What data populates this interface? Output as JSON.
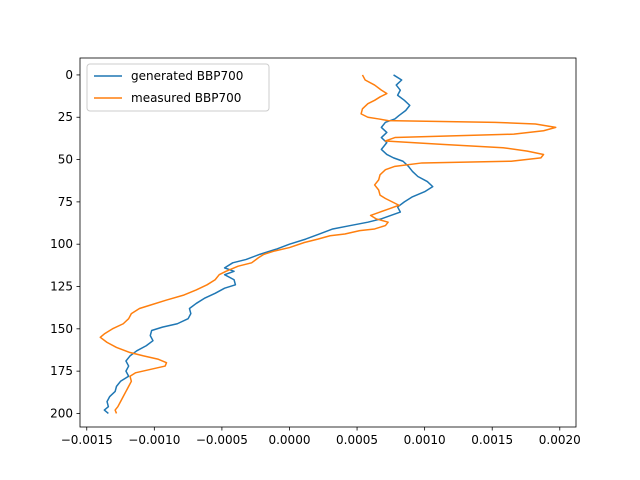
{
  "chart_data": {
    "type": "line",
    "title": "",
    "xlabel": "",
    "ylabel": "",
    "xlim": [
      -0.00155,
      0.00212
    ],
    "ylim": [
      208,
      -10
    ],
    "y_inverted": true,
    "grid": false,
    "legend_position": "upper-left",
    "x_ticks": [
      -0.0015,
      -0.001,
      -0.0005,
      0.0,
      0.0005,
      0.001,
      0.0015,
      0.002
    ],
    "x_tick_labels": [
      "−0.0015",
      "−0.0010",
      "−0.0005",
      "0.0000",
      "0.0005",
      "0.0010",
      "0.0015",
      "0.0020"
    ],
    "y_ticks": [
      0,
      25,
      50,
      75,
      100,
      125,
      150,
      175,
      200
    ],
    "y_tick_labels": [
      "0",
      "25",
      "50",
      "75",
      "100",
      "125",
      "150",
      "175",
      "200"
    ],
    "series": [
      {
        "name": "generated BBP700",
        "color": "#1f77b4",
        "points": [
          [
            0.00077,
            0
          ],
          [
            0.00083,
            3
          ],
          [
            0.00079,
            6
          ],
          [
            0.00082,
            9
          ],
          [
            0.0008,
            12
          ],
          [
            0.00085,
            15
          ],
          [
            0.00089,
            18
          ],
          [
            0.00086,
            21
          ],
          [
            0.00081,
            24
          ],
          [
            0.00078,
            26
          ],
          [
            0.00071,
            28
          ],
          [
            0.00068,
            31
          ],
          [
            0.00072,
            34
          ],
          [
            0.00068,
            37
          ],
          [
            0.00072,
            40
          ],
          [
            0.00068,
            44
          ],
          [
            0.00072,
            47
          ],
          [
            0.00077,
            49
          ],
          [
            0.00084,
            51
          ],
          [
            0.00088,
            54
          ],
          [
            0.00091,
            57
          ],
          [
            0.00095,
            60
          ],
          [
            0.00102,
            63
          ],
          [
            0.00106,
            66
          ],
          [
            0.001,
            69
          ],
          [
            0.00091,
            72
          ],
          [
            0.00085,
            75
          ],
          [
            0.0008,
            78
          ],
          [
            0.00082,
            81
          ],
          [
            0.00075,
            83
          ],
          [
            0.00068,
            85
          ],
          [
            0.00058,
            87
          ],
          [
            0.00045,
            89
          ],
          [
            0.00032,
            91
          ],
          [
            0.00022,
            94
          ],
          [
            0.00012,
            97
          ],
          [
            0.0,
            100
          ],
          [
            -0.0001,
            103
          ],
          [
            -0.00022,
            106
          ],
          [
            -0.00032,
            109
          ],
          [
            -0.00042,
            111
          ],
          [
            -0.00048,
            114
          ],
          [
            -0.00041,
            116
          ],
          [
            -0.00048,
            118
          ],
          [
            -0.00041,
            121
          ],
          [
            -0.0004,
            124
          ],
          [
            -0.00048,
            126
          ],
          [
            -0.00055,
            129
          ],
          [
            -0.00063,
            132
          ],
          [
            -0.00069,
            135
          ],
          [
            -0.00074,
            138
          ],
          [
            -0.00073,
            141
          ],
          [
            -0.00075,
            144
          ],
          [
            -0.00083,
            147
          ],
          [
            -0.00094,
            149
          ],
          [
            -0.00102,
            151
          ],
          [
            -0.00103,
            154
          ],
          [
            -0.00101,
            157
          ],
          [
            -0.00106,
            160
          ],
          [
            -0.00113,
            163
          ],
          [
            -0.00118,
            166
          ],
          [
            -0.00121,
            169
          ],
          [
            -0.00119,
            172
          ],
          [
            -0.00121,
            175
          ],
          [
            -0.00119,
            178
          ],
          [
            -0.00125,
            181
          ],
          [
            -0.00128,
            184
          ],
          [
            -0.00129,
            187
          ],
          [
            -0.00133,
            190
          ],
          [
            -0.00135,
            193
          ],
          [
            -0.00134,
            196
          ],
          [
            -0.00137,
            198
          ],
          [
            -0.00134,
            200
          ]
        ]
      },
      {
        "name": "measured BBP700",
        "color": "#ff7f0e",
        "points": [
          [
            0.00054,
            0
          ],
          [
            0.00056,
            3
          ],
          [
            0.00063,
            6
          ],
          [
            0.00068,
            9
          ],
          [
            0.00072,
            11
          ],
          [
            0.00067,
            13
          ],
          [
            0.00063,
            15
          ],
          [
            0.00058,
            17
          ],
          [
            0.00054,
            20
          ],
          [
            0.00053,
            23
          ],
          [
            0.00058,
            25
          ],
          [
            0.00066,
            26
          ],
          [
            0.00073,
            27
          ],
          [
            0.00152,
            28
          ],
          [
            0.00182,
            29
          ],
          [
            0.00197,
            31
          ],
          [
            0.00188,
            33
          ],
          [
            0.00166,
            35
          ],
          [
            0.00078,
            37
          ],
          [
            0.00071,
            39
          ],
          [
            0.00113,
            41
          ],
          [
            0.00158,
            43
          ],
          [
            0.00176,
            45
          ],
          [
            0.00188,
            47
          ],
          [
            0.00186,
            49
          ],
          [
            0.00164,
            51
          ],
          [
            0.00098,
            52
          ],
          [
            0.00078,
            54
          ],
          [
            0.00071,
            56
          ],
          [
            0.00067,
            59
          ],
          [
            0.00066,
            62
          ],
          [
            0.00063,
            65
          ],
          [
            0.00066,
            68
          ],
          [
            0.00067,
            71
          ],
          [
            0.00071,
            73
          ],
          [
            0.00076,
            75
          ],
          [
            0.00081,
            77
          ],
          [
            0.00074,
            79
          ],
          [
            0.00067,
            81
          ],
          [
            0.0006,
            83
          ],
          [
            0.00064,
            85
          ],
          [
            0.00073,
            87
          ],
          [
            0.00071,
            89
          ],
          [
            0.00063,
            91
          ],
          [
            0.00052,
            92
          ],
          [
            0.00041,
            94
          ],
          [
            0.0003,
            95
          ],
          [
            0.00021,
            97
          ],
          [
            0.00011,
            99
          ],
          [
            0.0,
            102
          ],
          [
            -0.00011,
            104
          ],
          [
            -0.00019,
            106
          ],
          [
            -0.00023,
            108
          ],
          [
            -0.00028,
            111
          ],
          [
            -0.00038,
            113
          ],
          [
            -0.00047,
            116
          ],
          [
            -0.00052,
            118
          ],
          [
            -0.00055,
            121
          ],
          [
            -0.00061,
            124
          ],
          [
            -0.00069,
            127
          ],
          [
            -0.00078,
            130
          ],
          [
            -0.00091,
            133
          ],
          [
            -0.00103,
            136
          ],
          [
            -0.00111,
            138
          ],
          [
            -0.00117,
            141
          ],
          [
            -0.00119,
            144
          ],
          [
            -0.00123,
            147
          ],
          [
            -0.00131,
            150
          ],
          [
            -0.00137,
            153
          ],
          [
            -0.0014,
            155
          ],
          [
            -0.00135,
            158
          ],
          [
            -0.00128,
            161
          ],
          [
            -0.00118,
            164
          ],
          [
            -0.00108,
            166
          ],
          [
            -0.00097,
            168
          ],
          [
            -0.00091,
            170
          ],
          [
            -0.00092,
            172
          ],
          [
            -0.00103,
            174
          ],
          [
            -0.00114,
            176
          ],
          [
            -0.00118,
            178
          ],
          [
            -0.00117,
            181
          ],
          [
            -0.00119,
            184
          ],
          [
            -0.00121,
            187
          ],
          [
            -0.00123,
            190
          ],
          [
            -0.00125,
            193
          ],
          [
            -0.00127,
            196
          ],
          [
            -0.00129,
            198
          ],
          [
            -0.00128,
            200
          ]
        ]
      }
    ]
  }
}
